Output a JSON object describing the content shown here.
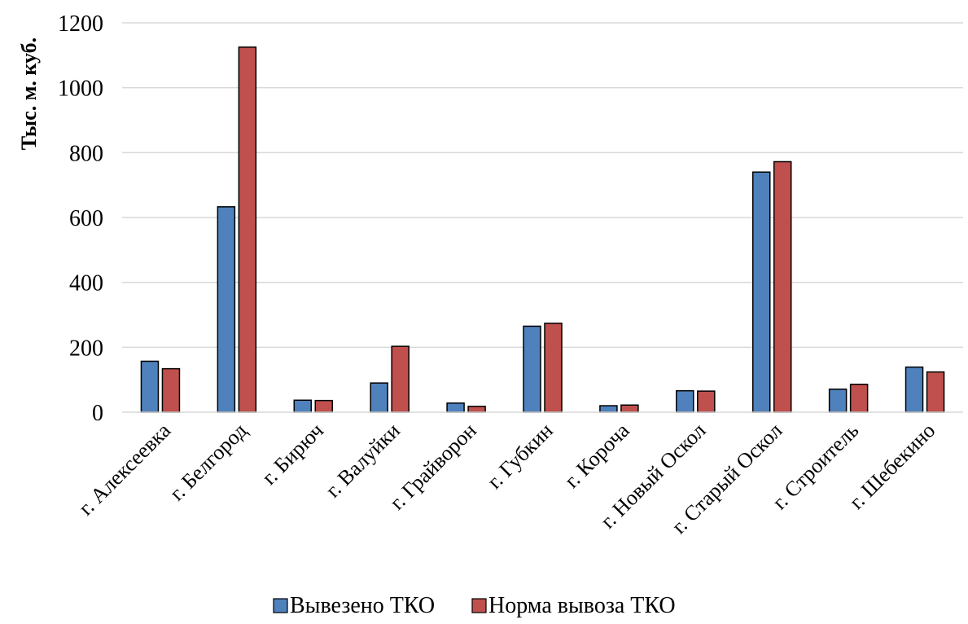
{
  "chart_data": {
    "type": "bar",
    "ylabel": "Тыс. м. куб.",
    "xlabel": "",
    "ylim": [
      0,
      1200
    ],
    "yticks": [
      0,
      200,
      400,
      600,
      800,
      1000,
      1200
    ],
    "grid": true,
    "legend_position": "bottom",
    "categories": [
      "г. Алексеевка",
      "г. Белгород",
      "г. Бирюч",
      "г. Валуйки",
      "г. Грайворон",
      "г. Губкин",
      "г. Короча",
      "г. Новый Оскол",
      "г. Старый Оскол",
      "г. Строитель",
      "г. Шебекино"
    ],
    "series": [
      {
        "name": "Вывезено ТКО",
        "color": "#4f81bd",
        "values": [
          157,
          633,
          37,
          90,
          28,
          265,
          20,
          66,
          740,
          71,
          139
        ]
      },
      {
        "name": "Норма вывоза ТКО",
        "color": "#c0504d",
        "values": [
          134,
          1125,
          36,
          203,
          18,
          274,
          22,
          65,
          772,
          86,
          124
        ]
      }
    ]
  }
}
